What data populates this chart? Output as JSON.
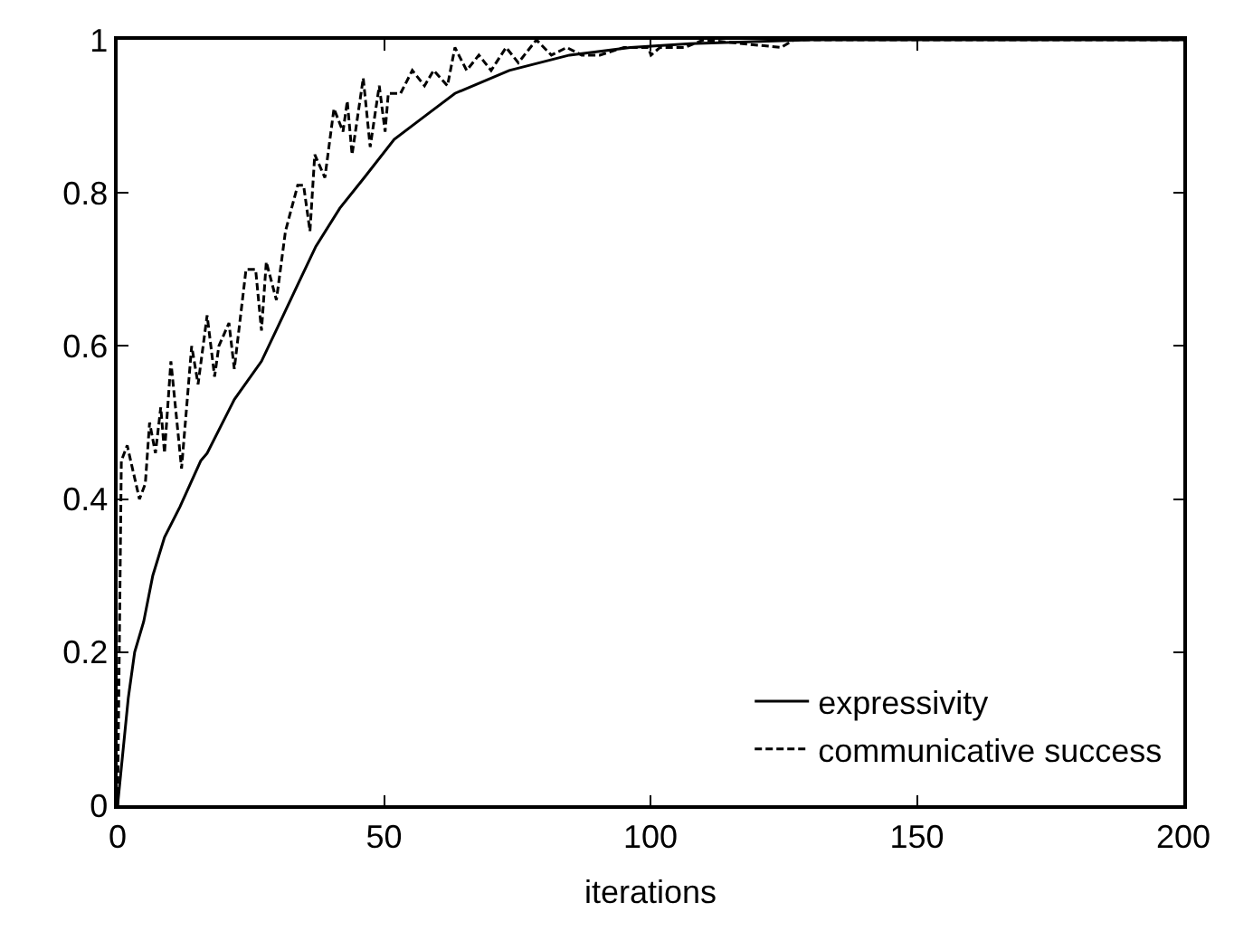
{
  "chart_data": {
    "type": "line",
    "xlabel": "iterations",
    "xlim": [
      0,
      200
    ],
    "ylim": [
      0,
      1
    ],
    "xticks": [
      0,
      50,
      100,
      150,
      200
    ],
    "yticks": [
      0,
      0.2,
      0.4,
      0.6,
      0.8,
      1
    ],
    "legend": "bottom right",
    "marker": "none",
    "series": [
      {
        "name": "expressivity",
        "color": "#000000",
        "line_style": "solid",
        "x": [
          0,
          2,
          3.2,
          4.9,
          6.6,
          8.8,
          11.7,
          15.6,
          16.8,
          21.9,
          27,
          30.4,
          33.8,
          37.2,
          41.7,
          46.3,
          51.9,
          57.6,
          63.3,
          73.5,
          84.8,
          96.2,
          107.5,
          130,
          200
        ],
        "values": [
          0,
          0.14,
          0.2,
          0.24,
          0.3,
          0.35,
          0.39,
          0.45,
          0.46,
          0.53,
          0.58,
          0.63,
          0.68,
          0.73,
          0.78,
          0.82,
          0.87,
          0.9,
          0.93,
          0.96,
          0.98,
          0.99,
          0.995,
          1,
          1
        ]
      },
      {
        "name": "communicative success",
        "color": "#000000",
        "line_style": "dashed",
        "x": [
          0,
          0.7,
          1.8,
          4.1,
          5.2,
          6,
          7.1,
          8.1,
          8.8,
          10,
          12,
          13.9,
          15.1,
          16.8,
          18.2,
          19,
          20.9,
          21.9,
          24.1,
          25.9,
          27,
          27.9,
          29.8,
          31.5,
          33.8,
          34.9,
          36.1,
          37,
          38.9,
          40.6,
          42.3,
          43.1,
          44,
          46.1,
          47.4,
          49.1,
          50.2,
          50.8,
          53.1,
          55.3,
          57.6,
          59.3,
          61.9,
          63.3,
          65.5,
          67.8,
          70.1,
          72.9,
          75.2,
          78.6,
          81.4,
          84.3,
          87.1,
          90.5,
          95,
          99.6,
          100.1,
          101.8,
          106.4,
          110,
          124.5,
          127,
          200
        ],
        "values": [
          0,
          0.45,
          0.47,
          0.4,
          0.42,
          0.5,
          0.46,
          0.52,
          0.46,
          0.58,
          0.44,
          0.6,
          0.55,
          0.64,
          0.56,
          0.6,
          0.63,
          0.57,
          0.7,
          0.7,
          0.62,
          0.71,
          0.66,
          0.75,
          0.81,
          0.81,
          0.75,
          0.85,
          0.82,
          0.91,
          0.88,
          0.92,
          0.85,
          0.95,
          0.86,
          0.94,
          0.88,
          0.93,
          0.93,
          0.96,
          0.94,
          0.96,
          0.94,
          0.99,
          0.96,
          0.98,
          0.96,
          0.99,
          0.97,
          1,
          0.98,
          0.99,
          0.98,
          0.98,
          0.99,
          0.99,
          0.98,
          0.99,
          0.99,
          1,
          0.99,
          1,
          1
        ]
      }
    ]
  }
}
